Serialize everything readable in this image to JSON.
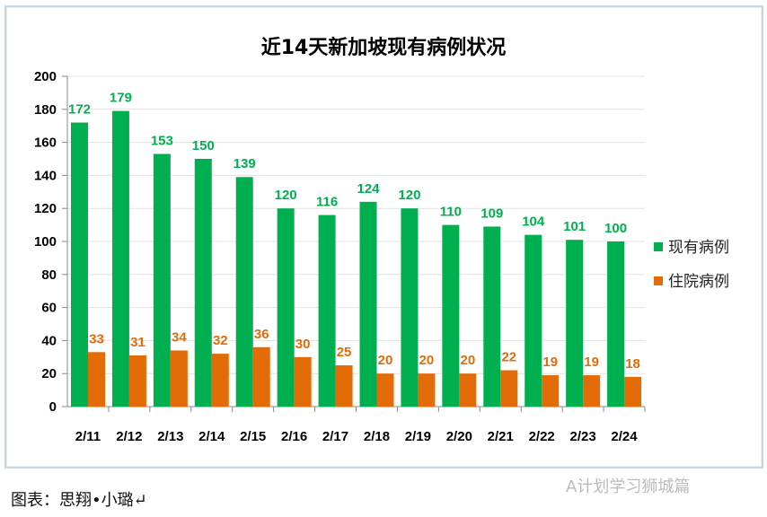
{
  "chart_data": {
    "type": "bar",
    "title": "近14天新加坡现有病例状况",
    "categories": [
      "2/11",
      "2/12",
      "2/13",
      "2/14",
      "2/15",
      "2/16",
      "2/17",
      "2/18",
      "2/19",
      "2/20",
      "2/21",
      "2/22",
      "2/23",
      "2/24"
    ],
    "series": [
      {
        "name": "现有病例",
        "color": "#00b050",
        "values": [
          172,
          179,
          153,
          150,
          139,
          120,
          116,
          124,
          120,
          110,
          109,
          104,
          101,
          100
        ]
      },
      {
        "name": "住院病例",
        "color": "#e36c09",
        "values": [
          33,
          31,
          34,
          32,
          36,
          30,
          25,
          20,
          20,
          20,
          22,
          19,
          19,
          18
        ]
      }
    ],
    "ylim": [
      0,
      200
    ],
    "yticks": [
      0,
      20,
      40,
      60,
      80,
      100,
      120,
      140,
      160,
      180,
      200
    ],
    "grid": true,
    "legend": "right",
    "data_labels": true
  },
  "footer": "图表：思翔•小璐↵",
  "watermark": "A计划学习狮城篇"
}
